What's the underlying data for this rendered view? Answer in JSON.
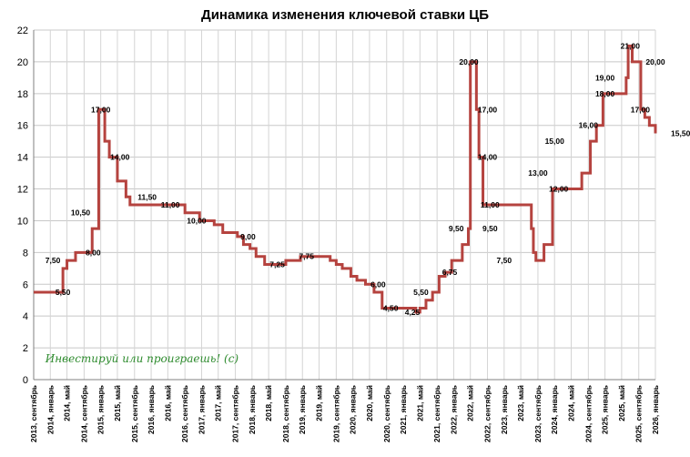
{
  "chart_data": {
    "type": "line",
    "title": "Динамика изменения ключевой ставки ЦБ",
    "xlabel": "",
    "ylabel": "",
    "ylim": [
      0,
      22
    ],
    "yticks": [
      0,
      2,
      4,
      6,
      8,
      10,
      12,
      14,
      16,
      18,
      20,
      22
    ],
    "grid": true,
    "legend": "none",
    "line_color": "#b5433f",
    "xlim": [
      2013.67,
      2026.0
    ],
    "x_tick_labels": [
      {
        "x": 2013.67,
        "label": "2013, сентябрь"
      },
      {
        "x": 2014.0,
        "label": "2014, январь"
      },
      {
        "x": 2014.33,
        "label": "2014, май"
      },
      {
        "x": 2014.67,
        "label": "2014, сентябрь"
      },
      {
        "x": 2015.0,
        "label": "2015, январь"
      },
      {
        "x": 2015.33,
        "label": "2015, май"
      },
      {
        "x": 2015.67,
        "label": "2015, сентябрь"
      },
      {
        "x": 2016.0,
        "label": "2016, январь"
      },
      {
        "x": 2016.33,
        "label": "2016, май"
      },
      {
        "x": 2016.67,
        "label": "2016, сентябрь"
      },
      {
        "x": 2017.0,
        "label": "2017, январь"
      },
      {
        "x": 2017.33,
        "label": "2017, май"
      },
      {
        "x": 2017.67,
        "label": "2017, сентябрь"
      },
      {
        "x": 2018.0,
        "label": "2018, январь"
      },
      {
        "x": 2018.33,
        "label": "2018, май"
      },
      {
        "x": 2018.67,
        "label": "2018, сентябрь"
      },
      {
        "x": 2019.0,
        "label": "2019, январь"
      },
      {
        "x": 2019.33,
        "label": "2019, май"
      },
      {
        "x": 2019.67,
        "label": "2019, сентябрь"
      },
      {
        "x": 2020.0,
        "label": "2020, январь"
      },
      {
        "x": 2020.33,
        "label": "2020, май"
      },
      {
        "x": 2020.67,
        "label": "2020, сентябрь"
      },
      {
        "x": 2021.0,
        "label": "2021, январь"
      },
      {
        "x": 2021.33,
        "label": "2021, май"
      },
      {
        "x": 2021.67,
        "label": "2021, сентябрь"
      },
      {
        "x": 2022.0,
        "label": "2022, январь"
      },
      {
        "x": 2022.33,
        "label": "2022, май"
      },
      {
        "x": 2022.67,
        "label": "2022, сентябрь"
      },
      {
        "x": 2023.0,
        "label": "2023, январь"
      },
      {
        "x": 2023.33,
        "label": "2023, май"
      },
      {
        "x": 2023.67,
        "label": "2023, сентябрь"
      },
      {
        "x": 2024.0,
        "label": "2024, январь"
      },
      {
        "x": 2024.33,
        "label": "2024, май"
      },
      {
        "x": 2024.67,
        "label": "2024, сентябрь"
      },
      {
        "x": 2025.0,
        "label": "2025, январь"
      },
      {
        "x": 2025.33,
        "label": "2025, май"
      },
      {
        "x": 2025.67,
        "label": "2025, сентябрь"
      },
      {
        "x": 2026.0,
        "label": "2026, январь"
      }
    ],
    "series": [
      {
        "x": [
          2013.67,
          2014.17,
          2014.25,
          2014.33,
          2014.5,
          2014.83,
          2014.96,
          2015.08,
          2015.17,
          2015.33,
          2015.5,
          2015.58,
          2016.42,
          2016.67,
          2016.96,
          2017.17,
          2017.25,
          2017.42,
          2017.71,
          2017.83,
          2017.96,
          2018.08,
          2018.25,
          2018.67,
          2018.96,
          2019.42,
          2019.55,
          2019.67,
          2019.79,
          2019.96,
          2020.08,
          2020.25,
          2020.42,
          2020.58,
          2021.25,
          2021.33,
          2021.45,
          2021.58,
          2021.71,
          2021.83,
          2021.96,
          2022.17,
          2022.29,
          2022.33,
          2022.45,
          2022.5,
          2022.58,
          2023.54,
          2023.58,
          2023.63,
          2023.71,
          2023.79,
          2023.96,
          2024.54,
          2024.71,
          2024.83,
          2024.96,
          2025.42,
          2025.46,
          2025.54,
          2025.71,
          2025.79,
          2025.88,
          2026.0
        ],
        "y": [
          5.5,
          5.5,
          7.0,
          7.5,
          8.0,
          9.5,
          17.0,
          15.0,
          14.0,
          12.5,
          11.5,
          11.0,
          11.0,
          10.5,
          10.0,
          10.0,
          9.75,
          9.25,
          9.0,
          8.5,
          8.25,
          7.75,
          7.25,
          7.5,
          7.75,
          7.75,
          7.5,
          7.25,
          7.0,
          6.5,
          6.25,
          6.0,
          5.5,
          4.5,
          4.25,
          4.5,
          5.0,
          5.5,
          6.5,
          6.75,
          7.5,
          8.5,
          9.5,
          20.0,
          17.0,
          14.0,
          11.0,
          9.5,
          8.0,
          7.5,
          7.5,
          8.5,
          12.0,
          13.0,
          15.0,
          16.0,
          18.0,
          19.0,
          21.0,
          20.0,
          17.0,
          16.5,
          16.0,
          15.5
        ]
      }
    ],
    "data_labels": [
      {
        "x": 2014.05,
        "y": 7.5,
        "label": "7,50"
      },
      {
        "x": 2014.25,
        "y": 5.5,
        "label": "5,50"
      },
      {
        "x": 2014.6,
        "y": 10.5,
        "label": "10,50"
      },
      {
        "x": 2014.85,
        "y": 8.0,
        "label": "8,00"
      },
      {
        "x": 2015.0,
        "y": 17.0,
        "label": "17,00"
      },
      {
        "x": 2015.38,
        "y": 14.0,
        "label": "14,00"
      },
      {
        "x": 2015.92,
        "y": 11.5,
        "label": "11,50"
      },
      {
        "x": 2016.38,
        "y": 11.0,
        "label": "11,00"
      },
      {
        "x": 2016.9,
        "y": 10.0,
        "label": "10,00"
      },
      {
        "x": 2017.92,
        "y": 9.0,
        "label": "9,00"
      },
      {
        "x": 2018.5,
        "y": 7.25,
        "label": "7,25"
      },
      {
        "x": 2019.08,
        "y": 7.75,
        "label": "7,75"
      },
      {
        "x": 2020.5,
        "y": 6.0,
        "label": "6,00"
      },
      {
        "x": 2020.75,
        "y": 4.5,
        "label": "4,50"
      },
      {
        "x": 2021.18,
        "y": 4.25,
        "label": "4,25"
      },
      {
        "x": 2021.35,
        "y": 5.5,
        "label": "5,50"
      },
      {
        "x": 2021.92,
        "y": 6.75,
        "label": "6,75"
      },
      {
        "x": 2022.05,
        "y": 9.5,
        "label": "9,50"
      },
      {
        "x": 2022.3,
        "y": 20.0,
        "label": "20,00"
      },
      {
        "x": 2022.67,
        "y": 17.0,
        "label": "17,00"
      },
      {
        "x": 2022.67,
        "y": 14.0,
        "label": "14,00"
      },
      {
        "x": 2022.72,
        "y": 11.0,
        "label": "11,00"
      },
      {
        "x": 2022.72,
        "y": 9.5,
        "label": "9,50"
      },
      {
        "x": 2023.0,
        "y": 7.5,
        "label": "7,50"
      },
      {
        "x": 2023.67,
        "y": 13.0,
        "label": "13,00"
      },
      {
        "x": 2024.0,
        "y": 15.0,
        "label": "15,00"
      },
      {
        "x": 2024.08,
        "y": 12.0,
        "label": "12,00"
      },
      {
        "x": 2024.67,
        "y": 16.0,
        "label": "16,00"
      },
      {
        "x": 2025.0,
        "y": 18.0,
        "label": "18,00"
      },
      {
        "x": 2025.0,
        "y": 19.0,
        "label": "19,00"
      },
      {
        "x": 2025.5,
        "y": 21.0,
        "label": "21,00"
      },
      {
        "x": 2026.0,
        "y": 20.0,
        "label": "20,00"
      },
      {
        "x": 2025.7,
        "y": 17.0,
        "label": "17,00"
      },
      {
        "x": 2026.5,
        "y": 15.5,
        "label": "15,50"
      }
    ],
    "annotation": "Инвестируй или проиграешь! (с)"
  }
}
